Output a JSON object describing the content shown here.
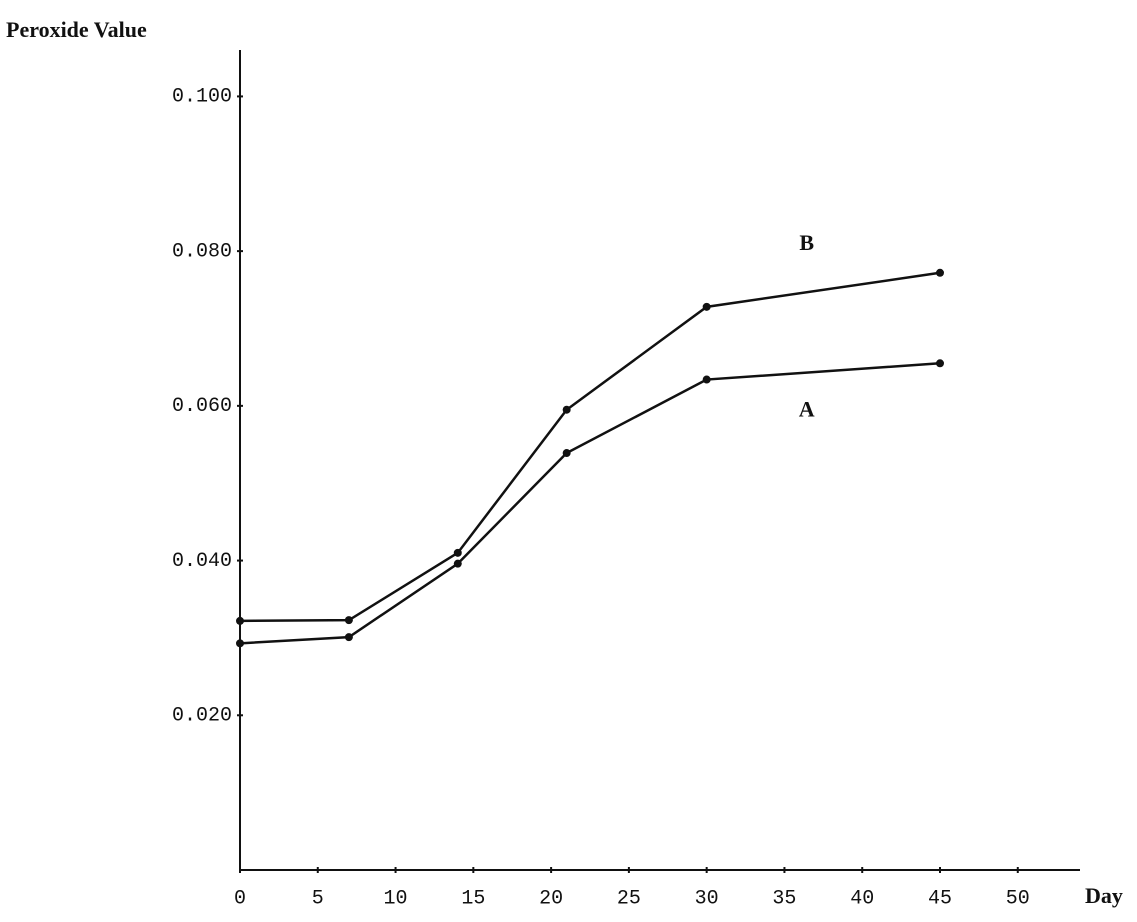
{
  "chart_data": {
    "type": "line",
    "y_label": "Peroxide Value",
    "x_label": "Day",
    "x": [
      0,
      7,
      14,
      21,
      30,
      45
    ],
    "series": [
      {
        "name": "A",
        "color": "#111111",
        "values": [
          0.0293,
          0.0301,
          0.0396,
          0.0539,
          0.0634,
          0.0655
        ]
      },
      {
        "name": "B",
        "color": "#111111",
        "values": [
          0.0322,
          0.0323,
          0.041,
          0.0595,
          0.0728,
          0.0772
        ]
      }
    ],
    "xlim": [
      0,
      54
    ],
    "ylim": [
      0,
      0.106
    ],
    "xticks": [
      0,
      5,
      10,
      15,
      20,
      25,
      30,
      35,
      40,
      45,
      50
    ],
    "yticks": [
      {
        "value": 0.02,
        "label": "0.020"
      },
      {
        "value": 0.04,
        "label": "0.040"
      },
      {
        "value": 0.06,
        "label": "0.060"
      },
      {
        "value": 0.08,
        "label": "0.080"
      },
      {
        "value": 0.1,
        "label": "0.100"
      }
    ],
    "grid": false
  }
}
